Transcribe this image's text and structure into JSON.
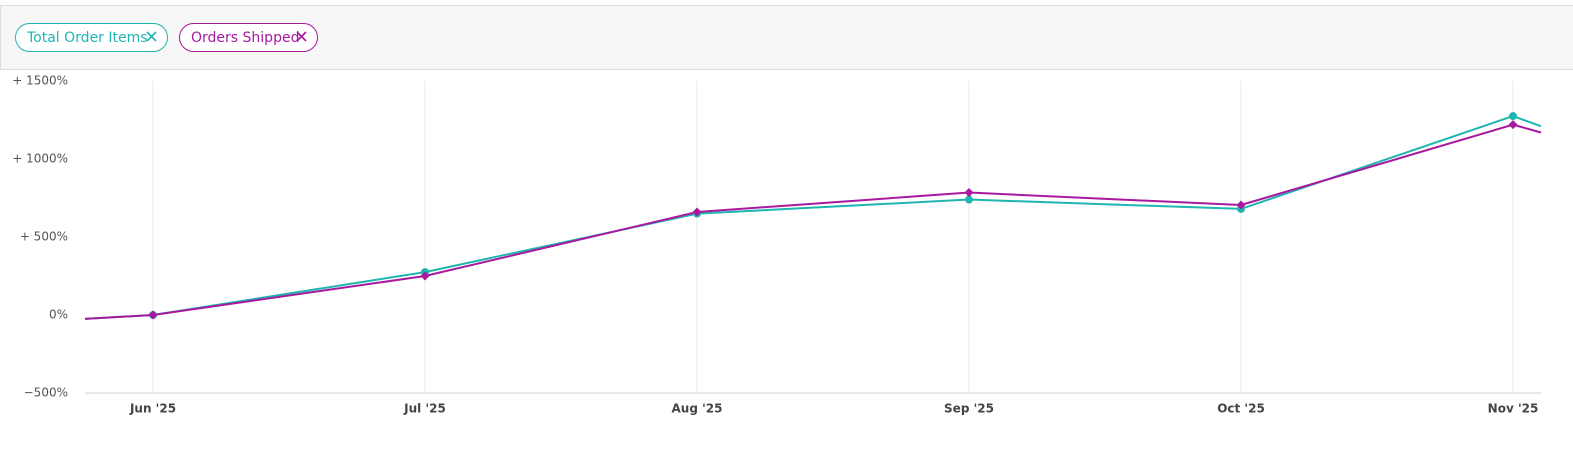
{
  "chart_data": {
    "type": "line",
    "categories": [
      null,
      "Jun '25",
      "Jul '25",
      "Aug '25",
      "Sep '25",
      "Oct '25",
      "Nov '25",
      null
    ],
    "series": [
      {
        "name": "Total Order Items",
        "color": "#1fb5b0",
        "marker": "circle",
        "values": [
          -25,
          0,
          275,
          650,
          740,
          680,
          1275,
          1210
        ]
      },
      {
        "name": "Orders Shipped",
        "color": "#a8199f",
        "marker": "diamond",
        "values": [
          -25,
          0,
          250,
          660,
          785,
          705,
          1220,
          1170
        ]
      }
    ],
    "ylim": [
      -500,
      1500
    ],
    "yticks": [
      {
        "value": -500,
        "label": "−500%"
      },
      {
        "value": 0,
        "label": "0%"
      },
      {
        "value": 500,
        "label": "+ 500%"
      },
      {
        "value": 1000,
        "label": "+ 1000%"
      },
      {
        "value": 1500,
        "label": "+ 1500%"
      }
    ],
    "grid": true
  }
}
